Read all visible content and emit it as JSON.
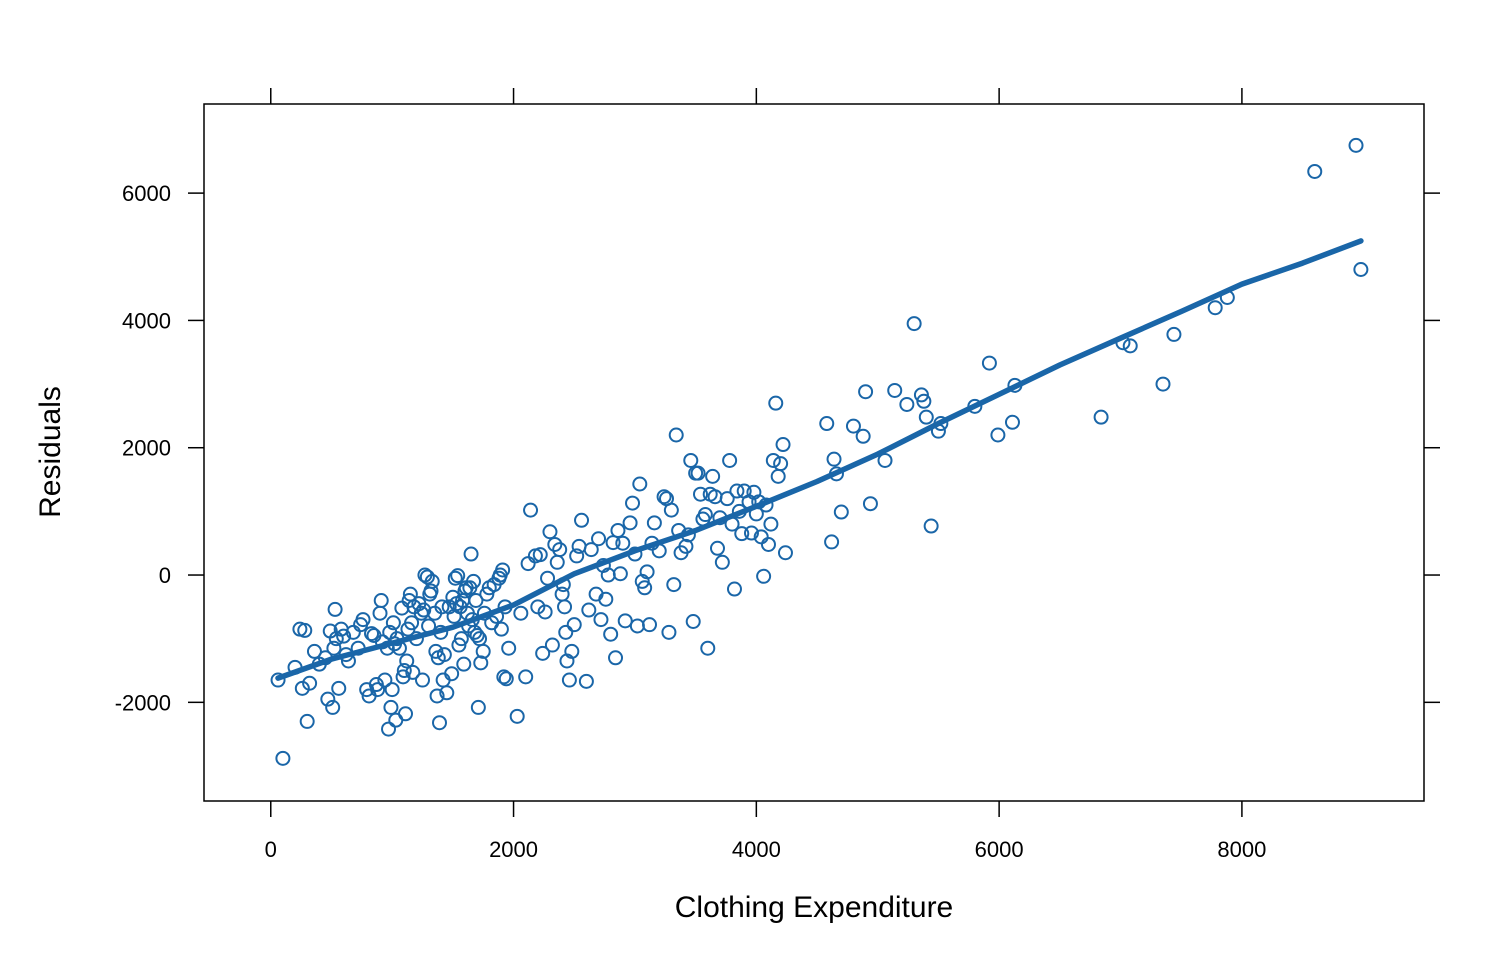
{
  "chart_data": {
    "type": "scatter",
    "xlabel": "Clothing Expenditure",
    "ylabel": "Residuals",
    "xlim": [
      -550,
      9500
    ],
    "ylim": [
      -3550,
      7400
    ],
    "xticks": [
      0,
      2000,
      4000,
      6000,
      8000
    ],
    "yticks": [
      -2000,
      0,
      2000,
      4000,
      6000
    ],
    "xtick_labels": [
      "0",
      "2000",
      "4000",
      "6000",
      "8000"
    ],
    "ytick_labels": [
      "-2000",
      "0",
      "2000",
      "4000",
      "6000"
    ],
    "grid": false,
    "color": "#1a66a8",
    "series": [
      {
        "kind": "points",
        "points": [
          [
            60,
            -1650
          ],
          [
            100,
            -2880
          ],
          [
            200,
            -1450
          ],
          [
            240,
            -850
          ],
          [
            260,
            -1780
          ],
          [
            280,
            -870
          ],
          [
            300,
            -2300
          ],
          [
            320,
            -1700
          ],
          [
            360,
            -1200
          ],
          [
            400,
            -1400
          ],
          [
            450,
            -1300
          ],
          [
            470,
            -1950
          ],
          [
            490,
            -880
          ],
          [
            510,
            -2080
          ],
          [
            520,
            -1150
          ],
          [
            530,
            -540
          ],
          [
            540,
            -1000
          ],
          [
            560,
            -1780
          ],
          [
            580,
            -850
          ],
          [
            600,
            -960
          ],
          [
            620,
            -1250
          ],
          [
            640,
            -1350
          ],
          [
            680,
            -900
          ],
          [
            720,
            -1150
          ],
          [
            740,
            -780
          ],
          [
            760,
            -700
          ],
          [
            790,
            -1800
          ],
          [
            810,
            -1900
          ],
          [
            830,
            -920
          ],
          [
            850,
            -950
          ],
          [
            870,
            -1720
          ],
          [
            880,
            -1800
          ],
          [
            900,
            -600
          ],
          [
            910,
            -400
          ],
          [
            920,
            -1050
          ],
          [
            940,
            -1650
          ],
          [
            960,
            -1150
          ],
          [
            970,
            -2420
          ],
          [
            980,
            -900
          ],
          [
            990,
            -2080
          ],
          [
            1000,
            -1800
          ],
          [
            1010,
            -750
          ],
          [
            1020,
            -1080
          ],
          [
            1030,
            -2280
          ],
          [
            1040,
            -1000
          ],
          [
            1060,
            -1150
          ],
          [
            1080,
            -520
          ],
          [
            1090,
            -1600
          ],
          [
            1100,
            -1500
          ],
          [
            1110,
            -2180
          ],
          [
            1120,
            -1350
          ],
          [
            1130,
            -850
          ],
          [
            1140,
            -400
          ],
          [
            1150,
            -300
          ],
          [
            1160,
            -750
          ],
          [
            1170,
            -1530
          ],
          [
            1180,
            -500
          ],
          [
            1200,
            -1000
          ],
          [
            1220,
            -450
          ],
          [
            1240,
            -600
          ],
          [
            1250,
            -1650
          ],
          [
            1260,
            -550
          ],
          [
            1270,
            0
          ],
          [
            1290,
            -30
          ],
          [
            1300,
            -800
          ],
          [
            1310,
            -300
          ],
          [
            1320,
            -250
          ],
          [
            1330,
            -100
          ],
          [
            1350,
            -600
          ],
          [
            1360,
            -1200
          ],
          [
            1370,
            -1900
          ],
          [
            1380,
            -1300
          ],
          [
            1390,
            -2320
          ],
          [
            1400,
            -900
          ],
          [
            1410,
            -500
          ],
          [
            1420,
            -1650
          ],
          [
            1430,
            -1250
          ],
          [
            1450,
            -1850
          ],
          [
            1470,
            -500
          ],
          [
            1490,
            -1550
          ],
          [
            1500,
            -350
          ],
          [
            1510,
            -650
          ],
          [
            1520,
            -50
          ],
          [
            1530,
            -450
          ],
          [
            1540,
            -10
          ],
          [
            1550,
            -1100
          ],
          [
            1560,
            -500
          ],
          [
            1570,
            -1000
          ],
          [
            1580,
            -400
          ],
          [
            1590,
            -1400
          ],
          [
            1600,
            -250
          ],
          [
            1610,
            -200
          ],
          [
            1620,
            -600
          ],
          [
            1630,
            -800
          ],
          [
            1640,
            -200
          ],
          [
            1650,
            330
          ],
          [
            1660,
            -700
          ],
          [
            1670,
            -100
          ],
          [
            1680,
            -900
          ],
          [
            1690,
            -400
          ],
          [
            1700,
            -950
          ],
          [
            1710,
            -2080
          ],
          [
            1720,
            -1000
          ],
          [
            1730,
            -1380
          ],
          [
            1750,
            -1200
          ],
          [
            1760,
            -600
          ],
          [
            1780,
            -300
          ],
          [
            1800,
            -200
          ],
          [
            1820,
            -750
          ],
          [
            1840,
            -150
          ],
          [
            1860,
            -650
          ],
          [
            1880,
            -50
          ],
          [
            1890,
            0
          ],
          [
            1900,
            -850
          ],
          [
            1910,
            80
          ],
          [
            1920,
            -1600
          ],
          [
            1930,
            -500
          ],
          [
            1940,
            -1630
          ],
          [
            1960,
            -1150
          ],
          [
            2030,
            -2220
          ],
          [
            2060,
            -600
          ],
          [
            2100,
            -1600
          ],
          [
            2120,
            180
          ],
          [
            2140,
            1020
          ],
          [
            2180,
            300
          ],
          [
            2200,
            -500
          ],
          [
            2220,
            320
          ],
          [
            2240,
            -1230
          ],
          [
            2260,
            -580
          ],
          [
            2280,
            -50
          ],
          [
            2300,
            680
          ],
          [
            2320,
            -1100
          ],
          [
            2340,
            480
          ],
          [
            2360,
            200
          ],
          [
            2380,
            400
          ],
          [
            2400,
            -300
          ],
          [
            2410,
            -150
          ],
          [
            2420,
            -500
          ],
          [
            2430,
            -900
          ],
          [
            2440,
            -1350
          ],
          [
            2460,
            -1650
          ],
          [
            2480,
            -1200
          ],
          [
            2500,
            -780
          ],
          [
            2520,
            300
          ],
          [
            2540,
            450
          ],
          [
            2560,
            860
          ],
          [
            2600,
            -1670
          ],
          [
            2620,
            -550
          ],
          [
            2640,
            400
          ],
          [
            2680,
            -300
          ],
          [
            2700,
            570
          ],
          [
            2720,
            -700
          ],
          [
            2740,
            150
          ],
          [
            2760,
            -380
          ],
          [
            2780,
            0
          ],
          [
            2800,
            -930
          ],
          [
            2820,
            510
          ],
          [
            2840,
            -1300
          ],
          [
            2860,
            700
          ],
          [
            2880,
            20
          ],
          [
            2900,
            500
          ],
          [
            2920,
            -720
          ],
          [
            2960,
            820
          ],
          [
            2980,
            1130
          ],
          [
            3000,
            330
          ],
          [
            3020,
            -800
          ],
          [
            3040,
            1430
          ],
          [
            3060,
            -100
          ],
          [
            3080,
            -200
          ],
          [
            3100,
            50
          ],
          [
            3120,
            -780
          ],
          [
            3140,
            500
          ],
          [
            3160,
            820
          ],
          [
            3200,
            380
          ],
          [
            3240,
            1230
          ],
          [
            3260,
            1200
          ],
          [
            3280,
            -900
          ],
          [
            3300,
            1020
          ],
          [
            3320,
            -150
          ],
          [
            3340,
            2200
          ],
          [
            3360,
            700
          ],
          [
            3380,
            350
          ],
          [
            3420,
            450
          ],
          [
            3440,
            630
          ],
          [
            3460,
            1800
          ],
          [
            3480,
            -730
          ],
          [
            3500,
            1600
          ],
          [
            3520,
            1600
          ],
          [
            3540,
            1270
          ],
          [
            3560,
            880
          ],
          [
            3580,
            950
          ],
          [
            3600,
            -1150
          ],
          [
            3620,
            1270
          ],
          [
            3640,
            1550
          ],
          [
            3660,
            1230
          ],
          [
            3680,
            420
          ],
          [
            3700,
            900
          ],
          [
            3720,
            200
          ],
          [
            3760,
            1200
          ],
          [
            3780,
            1800
          ],
          [
            3800,
            800
          ],
          [
            3820,
            -220
          ],
          [
            3840,
            1320
          ],
          [
            3860,
            1000
          ],
          [
            3880,
            650
          ],
          [
            3900,
            1320
          ],
          [
            3940,
            1150
          ],
          [
            3960,
            660
          ],
          [
            3980,
            1300
          ],
          [
            4000,
            960
          ],
          [
            4020,
            1150
          ],
          [
            4040,
            600
          ],
          [
            4060,
            -20
          ],
          [
            4080,
            1100
          ],
          [
            4100,
            480
          ],
          [
            4120,
            800
          ],
          [
            4140,
            1800
          ],
          [
            4160,
            2700
          ],
          [
            4180,
            1550
          ],
          [
            4200,
            1750
          ],
          [
            4220,
            2050
          ],
          [
            4240,
            350
          ],
          [
            4580,
            2380
          ],
          [
            4620,
            520
          ],
          [
            4640,
            1820
          ],
          [
            4660,
            1590
          ],
          [
            4700,
            990
          ],
          [
            4800,
            2340
          ],
          [
            4880,
            2180
          ],
          [
            4900,
            2880
          ],
          [
            4940,
            1120
          ],
          [
            5060,
            1800
          ],
          [
            5140,
            2900
          ],
          [
            5240,
            2680
          ],
          [
            5300,
            3950
          ],
          [
            5360,
            2830
          ],
          [
            5380,
            2730
          ],
          [
            5400,
            2480
          ],
          [
            5440,
            770
          ],
          [
            5500,
            2260
          ],
          [
            5520,
            2380
          ],
          [
            5800,
            2650
          ],
          [
            5920,
            3330
          ],
          [
            5990,
            2200
          ],
          [
            6110,
            2400
          ],
          [
            6130,
            2980
          ],
          [
            6840,
            2480
          ],
          [
            7020,
            3650
          ],
          [
            7080,
            3600
          ],
          [
            7350,
            3000
          ],
          [
            7440,
            3780
          ],
          [
            7780,
            4200
          ],
          [
            7880,
            4360
          ],
          [
            8600,
            6340
          ],
          [
            8940,
            6750
          ],
          [
            8980,
            4800
          ]
        ]
      },
      {
        "kind": "line",
        "points": [
          [
            60,
            -1620
          ],
          [
            500,
            -1320
          ],
          [
            1000,
            -1070
          ],
          [
            1500,
            -820
          ],
          [
            2000,
            -470
          ],
          [
            2500,
            20
          ],
          [
            3000,
            380
          ],
          [
            3500,
            700
          ],
          [
            4000,
            1080
          ],
          [
            4500,
            1470
          ],
          [
            5000,
            1900
          ],
          [
            5500,
            2380
          ],
          [
            6000,
            2840
          ],
          [
            6500,
            3300
          ],
          [
            7000,
            3720
          ],
          [
            7500,
            4140
          ],
          [
            8000,
            4570
          ],
          [
            8500,
            4900
          ],
          [
            8980,
            5250
          ]
        ]
      }
    ]
  }
}
